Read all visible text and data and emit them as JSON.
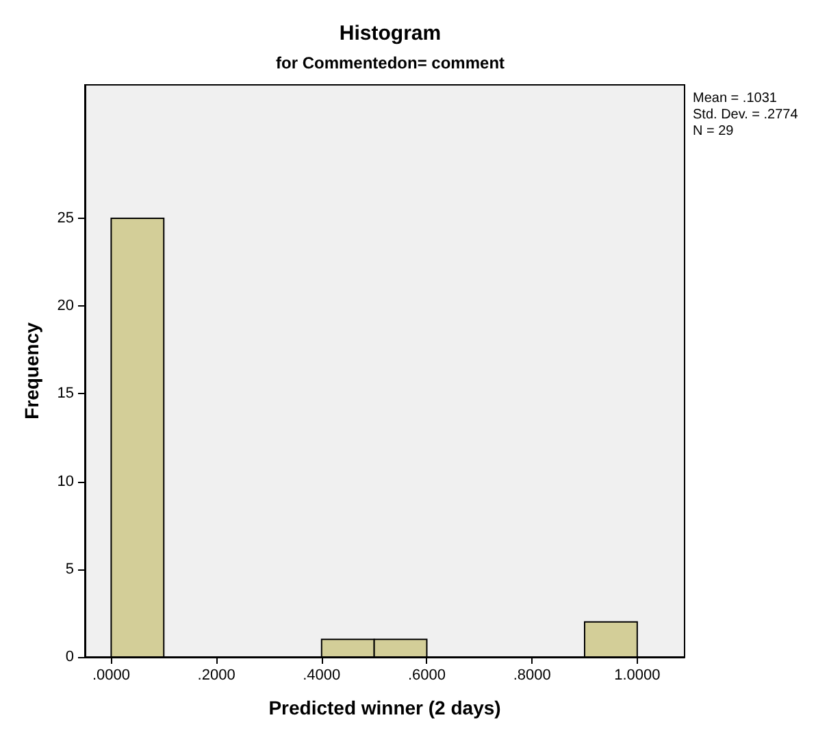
{
  "chart_data": {
    "type": "histogram",
    "title": "Histogram",
    "subtitle": "for Commentedon= comment",
    "xlabel": "Predicted winner (2 days)",
    "ylabel": "Frequency",
    "bins": [
      0,
      0.1,
      0.2,
      0.3,
      0.4,
      0.5,
      0.6,
      0.7,
      0.8,
      0.9,
      1.0
    ],
    "values": [
      25,
      0,
      0,
      0,
      1,
      1,
      0,
      0,
      0,
      2
    ],
    "color": "#d3ce98",
    "xlim": [
      -0.05,
      1.09
    ],
    "ylim": [
      0,
      32.6
    ],
    "xticks": [
      {
        "value": 0,
        "label": ".0000"
      },
      {
        "value": 0.2,
        "label": ".2000"
      },
      {
        "value": 0.4,
        "label": ".4000"
      },
      {
        "value": 0.6,
        "label": ".6000"
      },
      {
        "value": 0.8,
        "label": ".8000"
      },
      {
        "value": 1.0,
        "label": "1.0000"
      }
    ],
    "yticks": [
      0,
      5,
      10,
      15,
      20,
      25
    ],
    "annotations": [
      "Mean = .1031",
      "Std. Dev. = .2774",
      "N = 29"
    ],
    "grid": false
  }
}
